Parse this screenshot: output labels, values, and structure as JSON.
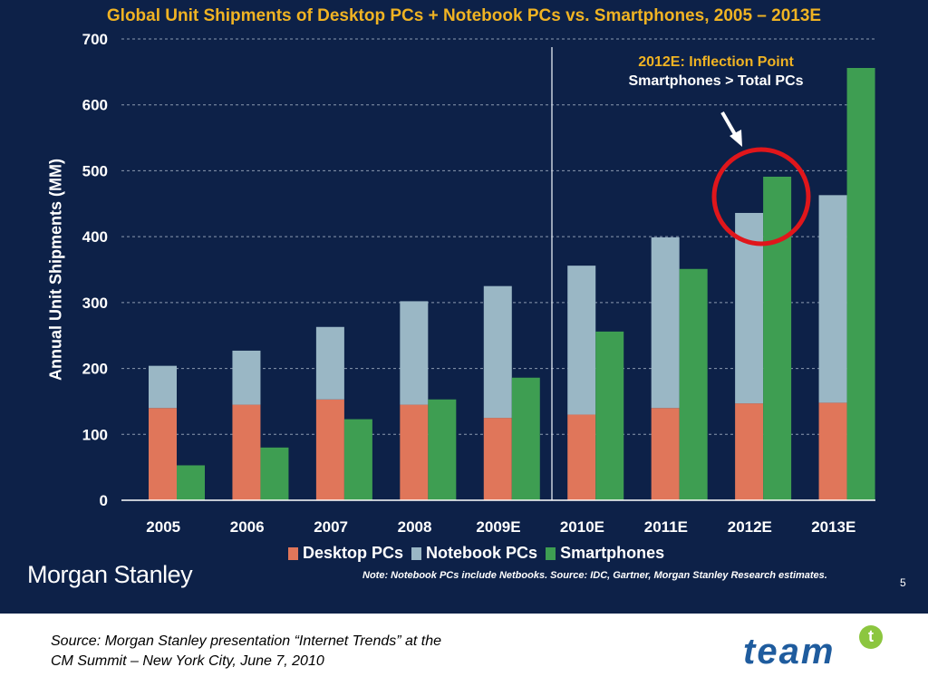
{
  "slide": {
    "title": "Global Unit Shipments of Desktop PCs + Notebook PCs vs. Smartphones, 2005 – 2013E",
    "annotation_line1": "2012E: Inflection Point",
    "annotation_line2": "Smartphones > Total PCs",
    "logo_text": "Morgan Stanley",
    "note": "Note: Notebook PCs include Netbooks. Source: IDC, Gartner, Morgan Stanley Research estimates.",
    "page_number": "5",
    "colors": {
      "background": "#0d2148",
      "title": "#f0b323",
      "desktop": "#e0765a",
      "notebook": "#9ab7c5",
      "smartphones": "#3e9e52",
      "circle": "#e0161b"
    }
  },
  "caption": {
    "line1": "Source: Morgan Stanley presentation “Internet Trends” at the",
    "line2": "CM Summit – New York City, June 7, 2010"
  },
  "team_logo": {
    "text": "team",
    "badge": "t"
  },
  "chart_data": {
    "type": "bar",
    "title": "Global Unit Shipments of Desktop PCs + Notebook PCs vs. Smartphones, 2005 – 2013E",
    "ylabel": "Annual Unit Shipments (MM)",
    "xlabel": "",
    "ylim": [
      0,
      700
    ],
    "yticks": [
      0,
      100,
      200,
      300,
      400,
      500,
      600,
      700
    ],
    "grid": true,
    "legend": "bottom",
    "categories": [
      "2005",
      "2006",
      "2007",
      "2008",
      "2009E",
      "2010E",
      "2011E",
      "2012E",
      "2013E"
    ],
    "series": [
      {
        "name": "Desktop PCs",
        "stack": "PCs",
        "values": [
          140,
          145,
          153,
          145,
          125,
          130,
          140,
          147,
          148
        ]
      },
      {
        "name": "Notebook PCs",
        "stack": "PCs",
        "values": [
          64,
          82,
          110,
          157,
          200,
          226,
          259,
          289,
          315
        ]
      },
      {
        "name": "Smartphones",
        "stack": "Smartphones",
        "values": [
          53,
          80,
          123,
          153,
          186,
          256,
          351,
          491,
          656
        ]
      }
    ]
  }
}
